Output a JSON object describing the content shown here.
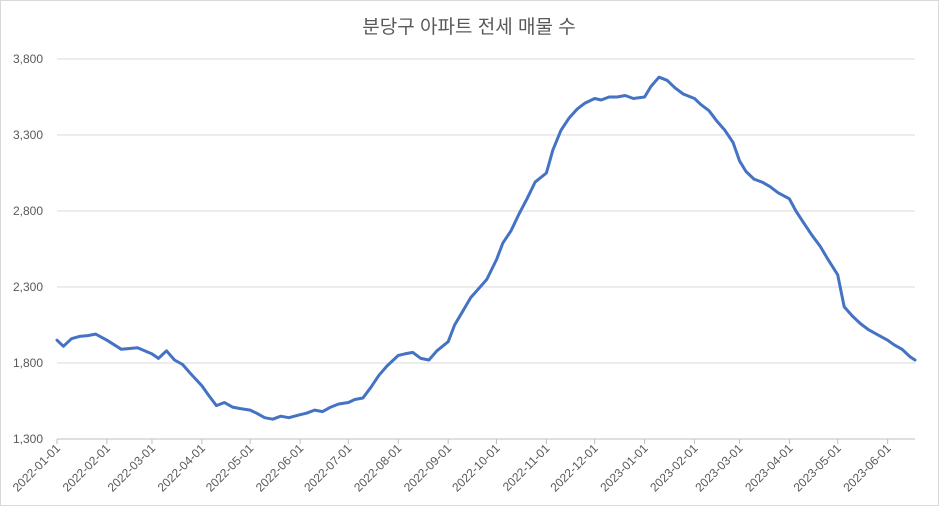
{
  "chart_data": {
    "type": "line",
    "title": "분당구 아파트 전세 매물 수",
    "xlabel": "",
    "ylabel": "",
    "x_range": [
      "2022-01-01",
      "2023-06-18"
    ],
    "ylim": [
      1300,
      3800
    ],
    "y_ticks": [
      1300,
      1800,
      2300,
      2800,
      3300,
      3800
    ],
    "y_tick_labels": [
      "1,300",
      "1,800",
      "2,300",
      "2,800",
      "3,300",
      "3,800"
    ],
    "x_ticks": [
      "2022-01-01",
      "2022-02-01",
      "2022-03-01",
      "2022-04-01",
      "2022-05-01",
      "2022-06-01",
      "2022-07-01",
      "2022-08-01",
      "2022-09-01",
      "2022-10-01",
      "2022-11-01",
      "2022-12-01",
      "2023-01-01",
      "2023-02-01",
      "2023-03-01",
      "2023-04-01",
      "2023-05-01",
      "2023-06-01"
    ],
    "grid": "horizontal",
    "legend": "none",
    "line_color": "#4472c4",
    "series": [
      {
        "x": [
          "2022-01-01",
          "2022-01-05",
          "2022-01-10",
          "2022-01-15",
          "2022-01-20",
          "2022-01-25",
          "2022-02-01",
          "2022-02-10",
          "2022-02-20",
          "2022-03-01",
          "2022-03-05",
          "2022-03-10",
          "2022-03-15",
          "2022-03-20",
          "2022-03-25",
          "2022-04-01",
          "2022-04-05",
          "2022-04-10",
          "2022-04-15",
          "2022-04-20",
          "2022-04-25",
          "2022-05-01",
          "2022-05-05",
          "2022-05-10",
          "2022-05-15",
          "2022-05-20",
          "2022-05-25",
          "2022-06-01",
          "2022-06-05",
          "2022-06-10",
          "2022-06-15",
          "2022-06-20",
          "2022-06-25",
          "2022-07-01",
          "2022-07-05",
          "2022-07-10",
          "2022-07-15",
          "2022-07-20",
          "2022-07-25",
          "2022-08-01",
          "2022-08-05",
          "2022-08-10",
          "2022-08-15",
          "2022-08-20",
          "2022-08-25",
          "2022-09-01",
          "2022-09-05",
          "2022-09-10",
          "2022-09-15",
          "2022-09-20",
          "2022-09-25",
          "2022-10-01",
          "2022-10-05",
          "2022-10-10",
          "2022-10-15",
          "2022-10-20",
          "2022-10-25",
          "2022-11-01",
          "2022-11-05",
          "2022-11-10",
          "2022-11-15",
          "2022-11-20",
          "2022-11-25",
          "2022-12-01",
          "2022-12-05",
          "2022-12-10",
          "2022-12-15",
          "2022-12-20",
          "2022-12-25",
          "2023-01-01",
          "2023-01-05",
          "2023-01-10",
          "2023-01-15",
          "2023-01-20",
          "2023-01-25",
          "2023-02-01",
          "2023-02-05",
          "2023-02-10",
          "2023-02-15",
          "2023-02-20",
          "2023-02-25",
          "2023-03-01",
          "2023-03-05",
          "2023-03-10",
          "2023-03-15",
          "2023-03-20",
          "2023-03-25",
          "2023-04-01",
          "2023-04-05",
          "2023-04-10",
          "2023-04-15",
          "2023-04-20",
          "2023-04-25",
          "2023-05-01",
          "2023-05-05",
          "2023-05-10",
          "2023-05-15",
          "2023-05-20",
          "2023-05-25",
          "2023-06-01",
          "2023-06-05",
          "2023-06-10",
          "2023-06-15",
          "2023-06-18"
        ],
        "y": [
          1950,
          1910,
          1960,
          1975,
          1980,
          1990,
          1950,
          1890,
          1900,
          1860,
          1830,
          1880,
          1820,
          1790,
          1730,
          1650,
          1590,
          1520,
          1540,
          1510,
          1500,
          1490,
          1470,
          1440,
          1430,
          1450,
          1440,
          1460,
          1470,
          1490,
          1480,
          1510,
          1530,
          1540,
          1560,
          1570,
          1640,
          1720,
          1780,
          1850,
          1860,
          1870,
          1830,
          1820,
          1880,
          1940,
          2050,
          2140,
          2230,
          2290,
          2350,
          2480,
          2590,
          2670,
          2780,
          2880,
          2990,
          3050,
          3200,
          3330,
          3410,
          3470,
          3510,
          3540,
          3530,
          3550,
          3550,
          3560,
          3540,
          3550,
          3620,
          3680,
          3660,
          3610,
          3570,
          3540,
          3500,
          3460,
          3390,
          3330,
          3250,
          3130,
          3060,
          3010,
          2990,
          2960,
          2920,
          2880,
          2800,
          2720,
          2640,
          2570,
          2480,
          2380,
          2170,
          2110,
          2060,
          2020,
          1990,
          1950,
          1920,
          1890,
          1840,
          1820
        ]
      }
    ]
  }
}
